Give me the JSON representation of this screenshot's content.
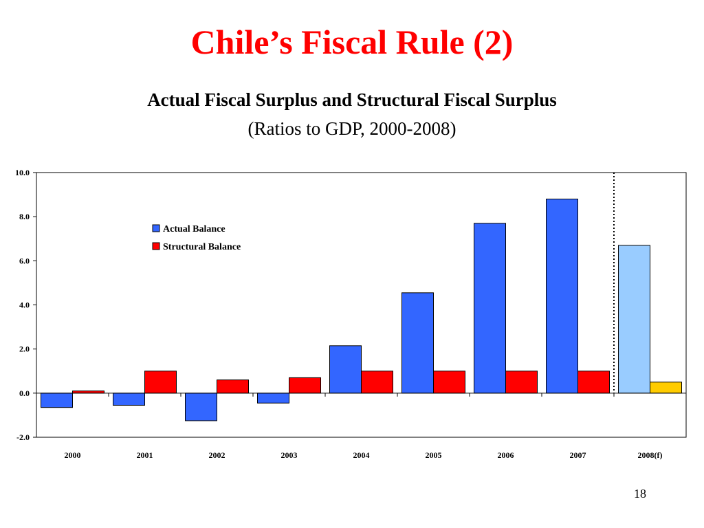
{
  "slide": {
    "title": "Chile’s Fiscal Rule (2)",
    "page_number": "18"
  },
  "colors": {
    "title": "#ff0000",
    "actual": "#3366ff",
    "structural": "#ff0000",
    "actual_forecast": "#99ccff",
    "structural_forecast": "#ffcc00"
  },
  "chart_data": {
    "type": "bar",
    "title": "Actual Fiscal Surplus and Structural Fiscal Surplus",
    "subtitle": "(Ratios to GDP, 2000-2008)",
    "categories": [
      "2000",
      "2001",
      "2002",
      "2003",
      "2004",
      "2005",
      "2006",
      "2007",
      "2008(f)"
    ],
    "series": [
      {
        "name": "Actual Balance",
        "values": [
          -0.65,
          -0.55,
          -1.25,
          -0.45,
          2.15,
          4.55,
          7.7,
          8.8,
          6.7
        ]
      },
      {
        "name": "Structural Balance",
        "values": [
          0.1,
          1.0,
          0.6,
          0.7,
          1.0,
          1.0,
          1.0,
          1.0,
          0.5
        ]
      }
    ],
    "forecast_category": "2008(f)",
    "ylim": [
      -2.0,
      10.0
    ],
    "yticks": [
      "10.0",
      "8.0",
      "6.0",
      "4.0",
      "2.0",
      "0.0",
      "-2.0"
    ],
    "xlabel": "",
    "ylabel": "",
    "legend_position": "upper-left",
    "grid": false
  }
}
